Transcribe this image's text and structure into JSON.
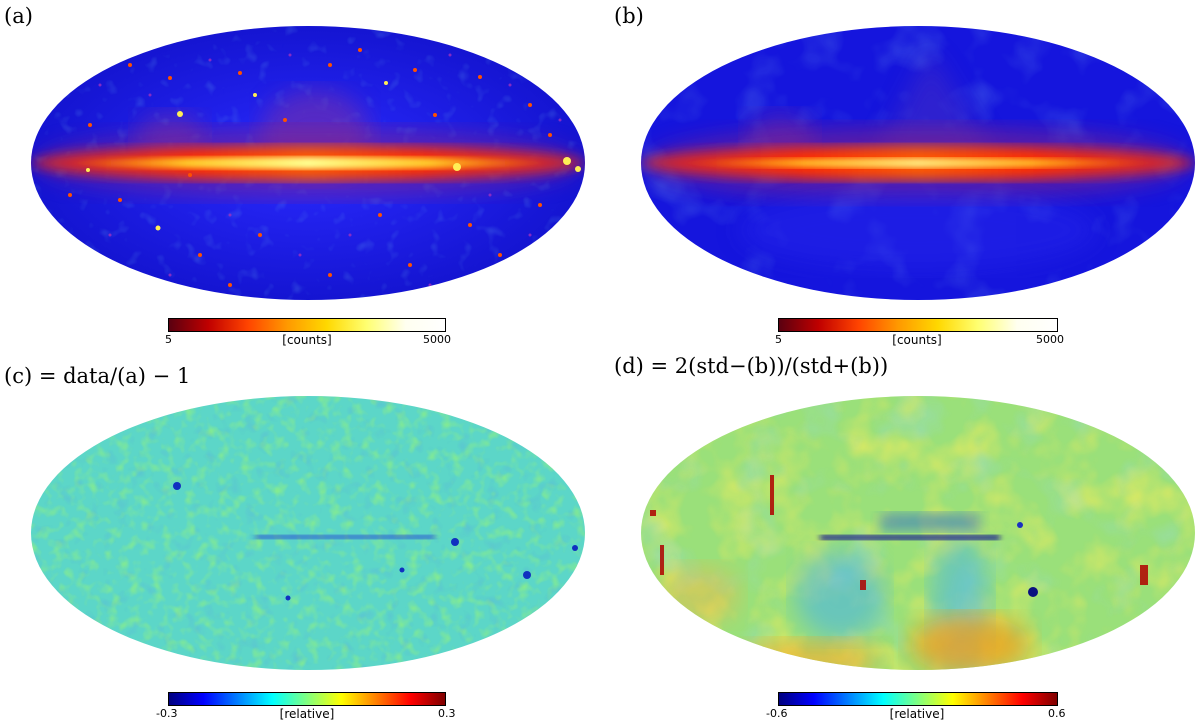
{
  "panels": [
    {
      "label": "(a)",
      "colorbar": {
        "min": "5",
        "max": "5000",
        "unit": "[counts]",
        "scale": "log",
        "colormap": "heat"
      }
    },
    {
      "label": "(b)",
      "colorbar": {
        "min": "5",
        "max": "5000",
        "unit": "[counts]",
        "scale": "log",
        "colormap": "heat"
      }
    },
    {
      "label": "(c) = data/(a) − 1",
      "colorbar": {
        "min": "-0.3",
        "max": "0.3",
        "unit": "[relative]",
        "scale": "linear",
        "colormap": "jet"
      }
    },
    {
      "label": "(d) = 2(std−(b))/(std+(b))",
      "colorbar": {
        "min": "-0.6",
        "max": "0.6",
        "unit": "[relative]",
        "scale": "linear",
        "colormap": "jet"
      }
    }
  ],
  "colors": {
    "sky_background_counts": "#1a1ae6",
    "galactic_plane_counts": "#ff2a00",
    "plane_core": "#ffee55",
    "residual_base": "#5cd6c8",
    "residual_warm": "#e6ec3a"
  }
}
